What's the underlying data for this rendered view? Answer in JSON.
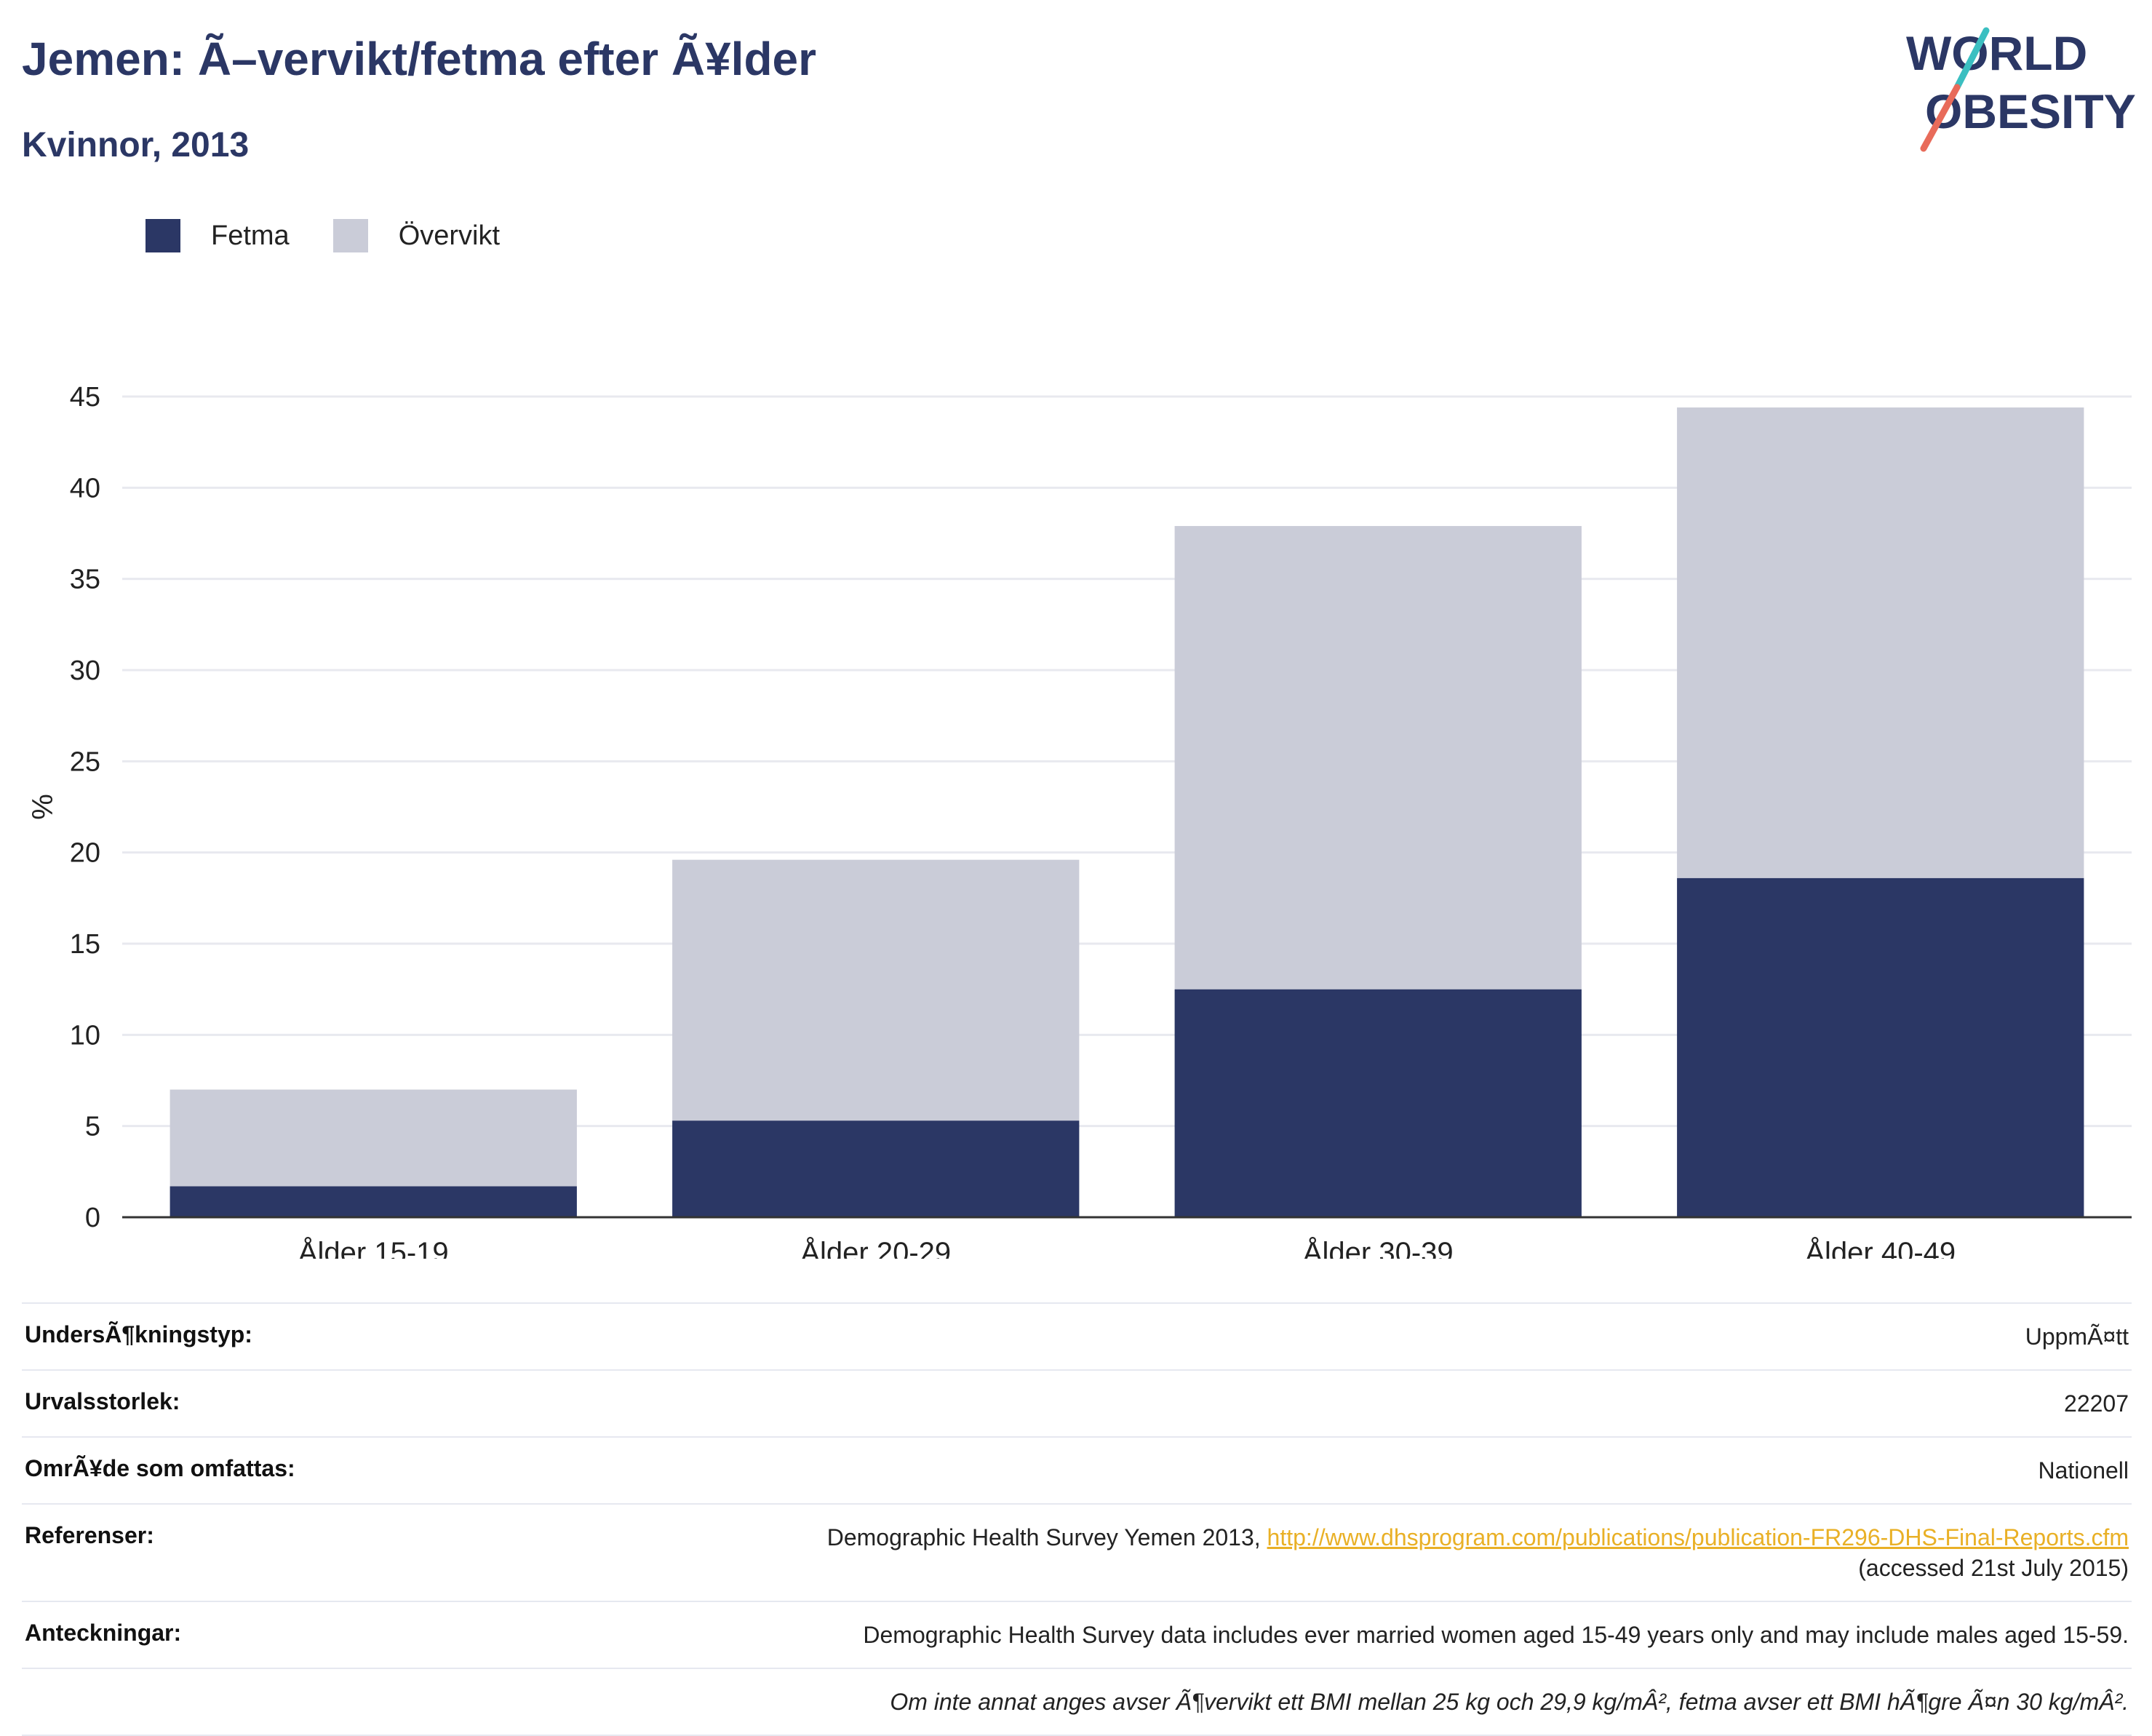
{
  "header": {
    "title": "Jemen: Ã–vervikt/fetma efter Ã¥lder",
    "subtitle": "Kvinnor, 2013"
  },
  "logo": {
    "line1": "WORLD",
    "line2": "OBESITY",
    "colors": {
      "text": "#2b3765",
      "slash_top": "#3bbfc1",
      "slash_bottom": "#e86b5a"
    }
  },
  "legend": {
    "items": [
      {
        "label": "Fetma",
        "color": "#2b3765"
      },
      {
        "label": "Övervikt",
        "color": "#caccd8"
      }
    ]
  },
  "chart_data": {
    "type": "bar",
    "stacked": true,
    "categories": [
      "Ålder 15-19",
      "Ålder 20-29",
      "Ålder 30-39",
      "Ålder 40-49"
    ],
    "series": [
      {
        "name": "Fetma",
        "color": "#2b3765",
        "values": [
          1.7,
          5.3,
          12.5,
          18.6
        ]
      },
      {
        "name": "Övervikt",
        "color": "#caccd8",
        "values": [
          5.3,
          14.3,
          25.4,
          25.8
        ]
      }
    ],
    "ylabel": "%",
    "ylim": [
      0,
      45
    ],
    "yticks": [
      0,
      5,
      10,
      15,
      20,
      25,
      30,
      35,
      40,
      45
    ],
    "grid": true,
    "legend_position": "top-left"
  },
  "info": {
    "rows": [
      {
        "label": "UndersÃ¶kningstyp:",
        "value": "UppmÃ¤tt"
      },
      {
        "label": "Urvalsstorlek:",
        "value": "22207"
      },
      {
        "label": "OmrÃ¥de som omfattas:",
        "value": "Nationell"
      },
      {
        "label": "Referenser:",
        "value": "Demographic Health Survey Yemen 2013, ",
        "link": "http://www.dhsprogram.com/publications/publication-FR296-DHS-Final-Reports.cfm",
        "value_after": "(accessed 21st July 2015)"
      },
      {
        "label": "Anteckningar:",
        "value": "Demographic Health Survey data includes ever married women aged 15-49 years only and may include males aged 15-59."
      },
      {
        "label": "",
        "value": "Om inte annat anges avser Ã¶vervikt ett BMI mellan 25 kg och 29,9 kg/mÂ², fetma avser ett BMI hÃ¶gre Ã¤n 30 kg/mÂ²."
      }
    ]
  }
}
